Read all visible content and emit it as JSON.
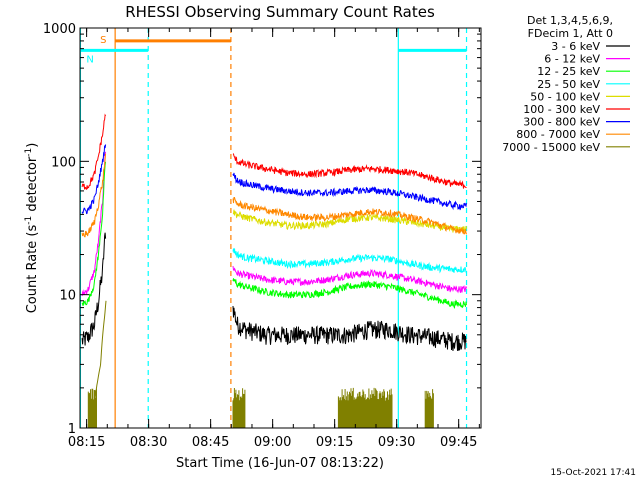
{
  "chart_data": {
    "type": "line",
    "title": "RHESSI Observing Summary Count Rates",
    "xlabel": "Start Time (16-Jun-07 08:13:22)",
    "ylabel_main": "Count Rate (s",
    "ylabel_sup1": "-1",
    "ylabel_mid": " detector",
    "ylabel_sup2": "-1",
    "ylabel_end": ")",
    "y_scale": "log",
    "ylim": [
      1,
      1000
    ],
    "xlim_minutes": [
      0,
      97
    ],
    "x_unit": "minutes since 08:13:22",
    "x_ticks": [
      {
        "label": "08:15",
        "minutes": 1.6
      },
      {
        "label": "08:30",
        "minutes": 16.6
      },
      {
        "label": "08:45",
        "minutes": 31.6
      },
      {
        "label": "09:00",
        "minutes": 46.6
      },
      {
        "label": "09:15",
        "minutes": 61.6
      },
      {
        "label": "09:30",
        "minutes": 76.6
      },
      {
        "label": "09:45",
        "minutes": 91.6
      }
    ],
    "y_ticks": [
      {
        "label": "1",
        "value": 1
      },
      {
        "label": "10",
        "value": 10
      },
      {
        "label": "100",
        "value": 100
      },
      {
        "label": "1000",
        "value": 1000
      }
    ],
    "legend_header": [
      "Det 1,3,4,5,6,9,",
      "FDecim 1, Att 0"
    ],
    "legend_position": "top-right",
    "series": [
      {
        "name": "3 - 6 keV",
        "color": "#000000",
        "segments": [
          {
            "x": [
              0.5,
              2,
              3.5,
              4.5,
              5.5,
              6.2
            ],
            "y": [
              4.5,
              4.8,
              6,
              9,
              15,
              30
            ]
          },
          {
            "x": [
              37,
              38,
              40,
              45,
              50,
              55,
              60,
              65,
              70,
              75,
              80,
              85,
              90,
              93.5
            ],
            "y": [
              8,
              6,
              5.5,
              5,
              5,
              5,
              5,
              5,
              5.5,
              5.5,
              5,
              4.8,
              4.5,
              4.5
            ]
          }
        ]
      },
      {
        "name": "6 - 12 keV",
        "color": "#ff00ff",
        "segments": [
          {
            "x": [
              0.5,
              2,
              3.5,
              4.5,
              5.5,
              6.2
            ],
            "y": [
              10,
              11,
              15,
              25,
              50,
              120
            ]
          },
          {
            "x": [
              37,
              38,
              40,
              45,
              50,
              55,
              60,
              65,
              70,
              75,
              80,
              85,
              90,
              93.5
            ],
            "y": [
              16,
              14.5,
              14,
              13,
              12.5,
              12.5,
              13,
              14,
              14.5,
              14,
              13,
              12,
              11,
              11
            ]
          }
        ]
      },
      {
        "name": "12 - 25 keV",
        "color": "#00ff00",
        "segments": [
          {
            "x": [
              0.5,
              2,
              3.5,
              4.5,
              5.5,
              6.2
            ],
            "y": [
              8.5,
              9,
              12,
              20,
              40,
              100
            ]
          },
          {
            "x": [
              37,
              38,
              40,
              45,
              50,
              55,
              60,
              65,
              70,
              75,
              80,
              85,
              90,
              93.5
            ],
            "y": [
              13,
              12,
              11.5,
              10.5,
              10,
              10,
              10.5,
              11.5,
              12,
              11.5,
              10.5,
              9.5,
              8.5,
              8.5
            ]
          }
        ]
      },
      {
        "name": "25 - 50 keV",
        "color": "#00ffff",
        "segments": [
          {
            "x": [
              37,
              38,
              40,
              45,
              50,
              55,
              60,
              65,
              70,
              75,
              80,
              85,
              90,
              93.5
            ],
            "y": [
              22,
              20,
              19,
              18,
              17,
              17,
              17.5,
              18.5,
              19,
              18.5,
              17,
              16,
              15.5,
              15.5
            ]
          }
        ]
      },
      {
        "name": "50 - 100 keV",
        "color": "#dddd00",
        "segments": [
          {
            "x": [
              37,
              38,
              40,
              45,
              50,
              55,
              60,
              65,
              70,
              75,
              80,
              85,
              90,
              93.5
            ],
            "y": [
              42,
              40,
              38,
              35,
              33,
              33,
              34,
              37,
              38,
              37,
              35,
              33,
              31,
              31
            ]
          }
        ]
      },
      {
        "name": "100 - 300 keV",
        "color": "#ff0000",
        "segments": [
          {
            "x": [
              0.5,
              2,
              3.5,
              4.5,
              5.5,
              6.2
            ],
            "y": [
              65,
              65,
              80,
              110,
              160,
              230
            ]
          },
          {
            "x": [
              37,
              38,
              40,
              45,
              50,
              55,
              60,
              65,
              70,
              75,
              80,
              85,
              90,
              93.5
            ],
            "y": [
              110,
              100,
              95,
              88,
              82,
              80,
              82,
              86,
              88,
              86,
              82,
              75,
              68,
              66
            ]
          }
        ]
      },
      {
        "name": "300 - 800 keV",
        "color": "#0000ff",
        "segments": [
          {
            "x": [
              0.5,
              2,
              3.5,
              4.5,
              5.5,
              6.2
            ],
            "y": [
              42,
              43,
              52,
              70,
              100,
              140
            ]
          },
          {
            "x": [
              37,
              38,
              40,
              45,
              50,
              55,
              60,
              65,
              70,
              75,
              80,
              85,
              90,
              93.5
            ],
            "y": [
              80,
              72,
              68,
              63,
              60,
              58,
              58,
              60,
              61,
              59,
              55,
              51,
              47,
              46
            ]
          }
        ]
      },
      {
        "name": "800 - 7000 keV",
        "color": "#ff8800",
        "segments": [
          {
            "x": [
              0.5,
              2,
              3.5,
              4.5,
              5.5,
              6.2
            ],
            "y": [
              28,
              29,
              35,
              48,
              70,
              110
            ]
          },
          {
            "x": [
              37,
              38,
              40,
              45,
              50,
              55,
              60,
              65,
              70,
              75,
              80,
              85,
              90,
              93.5
            ],
            "y": [
              52,
              48,
              46,
              43,
              40,
              38,
              38,
              40,
              42,
              41,
              38,
              35,
              31,
              30
            ]
          }
        ]
      },
      {
        "name": "7000 - 15000 keV",
        "color": "#808000",
        "segments": [
          {
            "x": [
              3,
              4,
              5,
              5.5,
              6,
              6.3
            ],
            "y": [
              1,
              2,
              3,
              5,
              7,
              9
            ]
          }
        ],
        "bursts": [
          {
            "x_start": 2.0,
            "x_end": 4.0,
            "y": 2.0
          },
          {
            "x_start": 37.0,
            "x_end": 40.0,
            "y": 2.0
          },
          {
            "x_start": 62.5,
            "x_end": 75.5,
            "y": 2.0
          },
          {
            "x_start": 83.5,
            "x_end": 85.5,
            "y": 2.0
          }
        ]
      }
    ],
    "markers": [
      {
        "type": "line",
        "color": "#ff7f00",
        "style": "solid",
        "x": 8.5
      },
      {
        "type": "line",
        "color": "#ff7f00",
        "style": "dashed",
        "x": 36.5
      },
      {
        "type": "line",
        "color": "#00ffff",
        "style": "solid",
        "x": 0.1
      },
      {
        "type": "line",
        "color": "#00ffff",
        "style": "dashed",
        "x": 16.5
      },
      {
        "type": "line",
        "color": "#00ffff",
        "style": "solid",
        "x": 77.0
      },
      {
        "type": "line",
        "color": "#00ffff",
        "style": "dashed",
        "x": 93.5
      }
    ],
    "bars": [
      {
        "label": "S",
        "color": "#ff7f00",
        "x_start": 8.5,
        "x_end": 36.5,
        "y": 800
      },
      {
        "label": "N",
        "color": "#00ffff",
        "x_start": 0.1,
        "x_end": 16.5,
        "y": 680
      },
      {
        "label": "",
        "color": "#00ffff",
        "x_start": 77.0,
        "x_end": 93.5,
        "y": 680
      }
    ],
    "footer_timestamp": "15-Oct-2021 17:41"
  }
}
